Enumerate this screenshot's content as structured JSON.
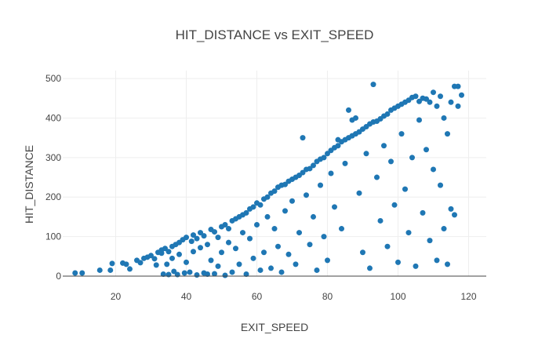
{
  "chart_data": {
    "type": "scatter",
    "title": "HIT_DISTANCE vs EXIT_SPEED",
    "xlabel": "EXIT_SPEED",
    "ylabel": "HIT_DISTANCE",
    "xlim": [
      5,
      125
    ],
    "ylim": [
      0,
      520
    ],
    "xticks": [
      20,
      40,
      60,
      80,
      100,
      120
    ],
    "yticks": [
      0,
      100,
      200,
      300,
      400,
      500
    ],
    "grid": true,
    "marker_color": "#1f77b4",
    "series": [
      {
        "points": [
          [
            8.5,
            8
          ],
          [
            10.5,
            8
          ],
          [
            15.5,
            15
          ],
          [
            18.5,
            15
          ],
          [
            19,
            32
          ],
          [
            22,
            33
          ],
          [
            23,
            30
          ],
          [
            24,
            18
          ],
          [
            26,
            40
          ],
          [
            27,
            34
          ],
          [
            28,
            45
          ],
          [
            29,
            48
          ],
          [
            30,
            52
          ],
          [
            31,
            44
          ],
          [
            31.5,
            28
          ],
          [
            32,
            60
          ],
          [
            33,
            66
          ],
          [
            33,
            58
          ],
          [
            33.5,
            5
          ],
          [
            34,
            70
          ],
          [
            34.5,
            30
          ],
          [
            35,
            62
          ],
          [
            35,
            4
          ],
          [
            36,
            75
          ],
          [
            36,
            45
          ],
          [
            36.5,
            12
          ],
          [
            37,
            80
          ],
          [
            37.5,
            4
          ],
          [
            38,
            85
          ],
          [
            38,
            55
          ],
          [
            39,
            92
          ],
          [
            39.5,
            8
          ],
          [
            40,
            98
          ],
          [
            40,
            35
          ],
          [
            41,
            10
          ],
          [
            41.5,
            88
          ],
          [
            42,
            104
          ],
          [
            42,
            62
          ],
          [
            43,
            95
          ],
          [
            43,
            3
          ],
          [
            44,
            110
          ],
          [
            44,
            72
          ],
          [
            45,
            102
          ],
          [
            45,
            8
          ],
          [
            46,
            80
          ],
          [
            46,
            5
          ],
          [
            47,
            118
          ],
          [
            47,
            40
          ],
          [
            48,
            112
          ],
          [
            48,
            6
          ],
          [
            49,
            98
          ],
          [
            49,
            25
          ],
          [
            50,
            125
          ],
          [
            50,
            60
          ],
          [
            51,
            130
          ],
          [
            51,
            2
          ],
          [
            52,
            120
          ],
          [
            52,
            85
          ],
          [
            53,
            140
          ],
          [
            53,
            10
          ],
          [
            54,
            145
          ],
          [
            54,
            70
          ],
          [
            55,
            150
          ],
          [
            55,
            30
          ],
          [
            56,
            155
          ],
          [
            56,
            110
          ],
          [
            57,
            160
          ],
          [
            57,
            5
          ],
          [
            58,
            170
          ],
          [
            58,
            95
          ],
          [
            59,
            175
          ],
          [
            59,
            45
          ],
          [
            60,
            185
          ],
          [
            60,
            130
          ],
          [
            61,
            180
          ],
          [
            61,
            15
          ],
          [
            62,
            195
          ],
          [
            62,
            60
          ],
          [
            63,
            200
          ],
          [
            63,
            150
          ],
          [
            64,
            210
          ],
          [
            64,
            20
          ],
          [
            65,
            215
          ],
          [
            65,
            120
          ],
          [
            66,
            225
          ],
          [
            66,
            75
          ],
          [
            67,
            230
          ],
          [
            67,
            10
          ],
          [
            68,
            232
          ],
          [
            68,
            165
          ],
          [
            69,
            240
          ],
          [
            69,
            55
          ],
          [
            70,
            245
          ],
          [
            70,
            190
          ],
          [
            71,
            250
          ],
          [
            71,
            30
          ],
          [
            72,
            255
          ],
          [
            72,
            110
          ],
          [
            73,
            262
          ],
          [
            73,
            350
          ],
          [
            74,
            270
          ],
          [
            74,
            205
          ],
          [
            75,
            272
          ],
          [
            75,
            80
          ],
          [
            76,
            280
          ],
          [
            76,
            150
          ],
          [
            77,
            290
          ],
          [
            77,
            15
          ],
          [
            78,
            296
          ],
          [
            78,
            230
          ],
          [
            79,
            300
          ],
          [
            79,
            100
          ],
          [
            80,
            310
          ],
          [
            80,
            40
          ],
          [
            81,
            318
          ],
          [
            81,
            260
          ],
          [
            82,
            325
          ],
          [
            82,
            175
          ],
          [
            83,
            330
          ],
          [
            83,
            345
          ],
          [
            84,
            340
          ],
          [
            84,
            120
          ],
          [
            85,
            345
          ],
          [
            85,
            285
          ],
          [
            86,
            350
          ],
          [
            86,
            420
          ],
          [
            87,
            355
          ],
          [
            87,
            395
          ],
          [
            88,
            360
          ],
          [
            88,
            400
          ],
          [
            89,
            365
          ],
          [
            89,
            210
          ],
          [
            90,
            372
          ],
          [
            90,
            60
          ],
          [
            91,
            378
          ],
          [
            91,
            310
          ],
          [
            92,
            385
          ],
          [
            92,
            20
          ],
          [
            93,
            485
          ],
          [
            93,
            390
          ],
          [
            94,
            392
          ],
          [
            94,
            250
          ],
          [
            95,
            398
          ],
          [
            95,
            140
          ],
          [
            96,
            405
          ],
          [
            96,
            330
          ],
          [
            97,
            410
          ],
          [
            97,
            75
          ],
          [
            98,
            420
          ],
          [
            98,
            290
          ],
          [
            99,
            425
          ],
          [
            99,
            180
          ],
          [
            100,
            430
          ],
          [
            100,
            35
          ],
          [
            101,
            435
          ],
          [
            101,
            360
          ],
          [
            102,
            440
          ],
          [
            102,
            220
          ],
          [
            103,
            445
          ],
          [
            103,
            110
          ],
          [
            104,
            452
          ],
          [
            104,
            300
          ],
          [
            105,
            455
          ],
          [
            105,
            25
          ],
          [
            106,
            442
          ],
          [
            106,
            395
          ],
          [
            107,
            450
          ],
          [
            107,
            160
          ],
          [
            108,
            448
          ],
          [
            108,
            320
          ],
          [
            109,
            440
          ],
          [
            109,
            90
          ],
          [
            110,
            465
          ],
          [
            110,
            270
          ],
          [
            111,
            430
          ],
          [
            111,
            40
          ],
          [
            112,
            455
          ],
          [
            112,
            230
          ],
          [
            113,
            400
          ],
          [
            113,
            120
          ],
          [
            114,
            360
          ],
          [
            114,
            30
          ],
          [
            115,
            440
          ],
          [
            115,
            170
          ],
          [
            116,
            480
          ],
          [
            116,
            155
          ],
          [
            117,
            480
          ],
          [
            117,
            430
          ],
          [
            118,
            458
          ]
        ]
      }
    ]
  }
}
